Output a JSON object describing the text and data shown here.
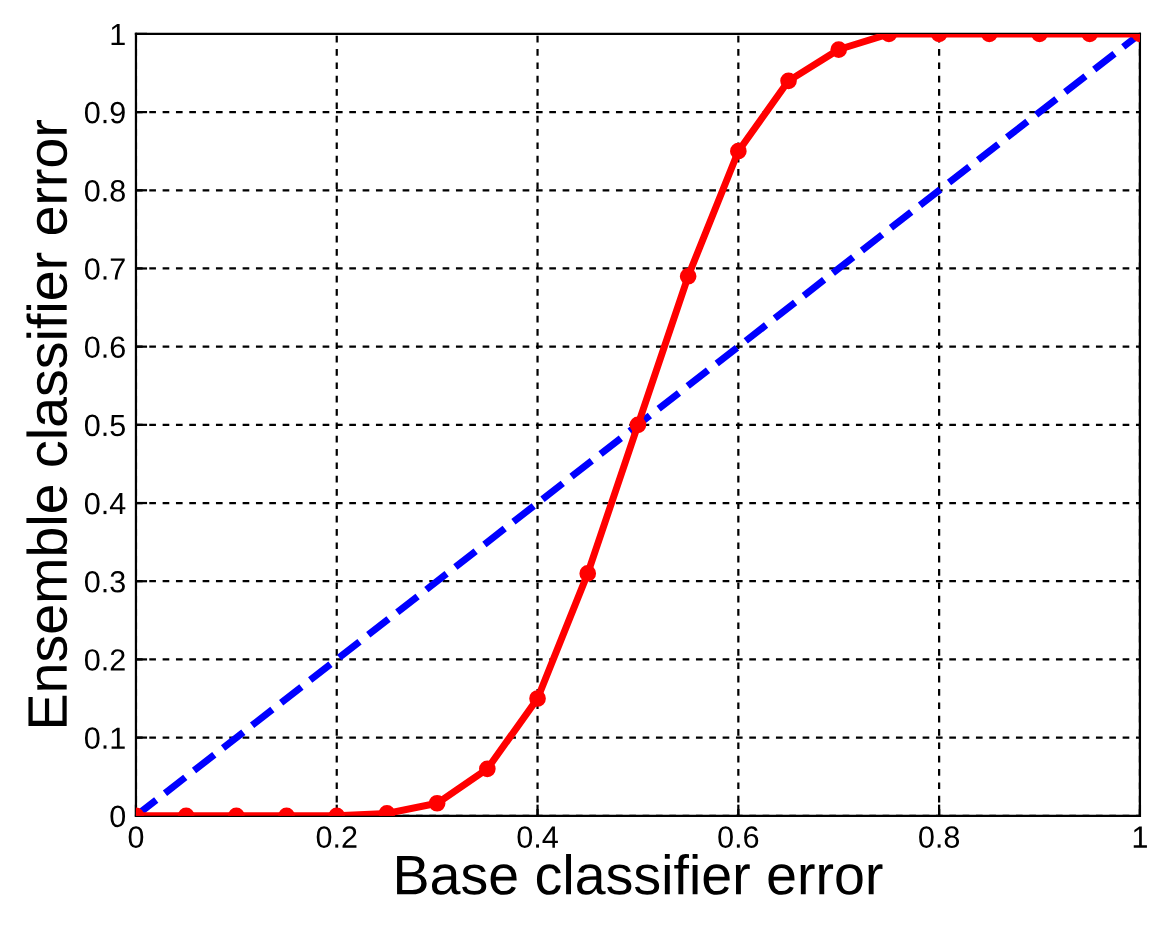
{
  "chart_data": {
    "type": "line",
    "xlabel": "Base classifier error",
    "ylabel": "Ensemble classifier error",
    "xlim": [
      0,
      1
    ],
    "ylim": [
      0,
      1
    ],
    "xticks": [
      0,
      0.2,
      0.4,
      0.6,
      0.8,
      1
    ],
    "yticks": [
      0,
      0.1,
      0.2,
      0.3,
      0.4,
      0.5,
      0.6,
      0.7,
      0.8,
      0.9,
      1
    ],
    "grid": true,
    "legend": false,
    "series": [
      {
        "color": "#ff0000",
        "marker": "circle",
        "line_style": "solid",
        "x": [
          0,
          0.05,
          0.1,
          0.15,
          0.2,
          0.25,
          0.3,
          0.35,
          0.4,
          0.45,
          0.5,
          0.55,
          0.6,
          0.65,
          0.7,
          0.75,
          0.8,
          0.85,
          0.9,
          0.95,
          1
        ],
        "values": [
          0,
          0,
          0,
          0,
          0,
          0.003,
          0.016,
          0.06,
          0.15,
          0.31,
          0.5,
          0.69,
          0.85,
          0.94,
          0.98,
          1,
          1,
          1,
          1,
          1,
          1
        ]
      },
      {
        "color": "#0000ff",
        "marker": "none",
        "line_style": "dashed",
        "x": [
          0,
          1
        ],
        "values": [
          0,
          1
        ]
      }
    ]
  }
}
